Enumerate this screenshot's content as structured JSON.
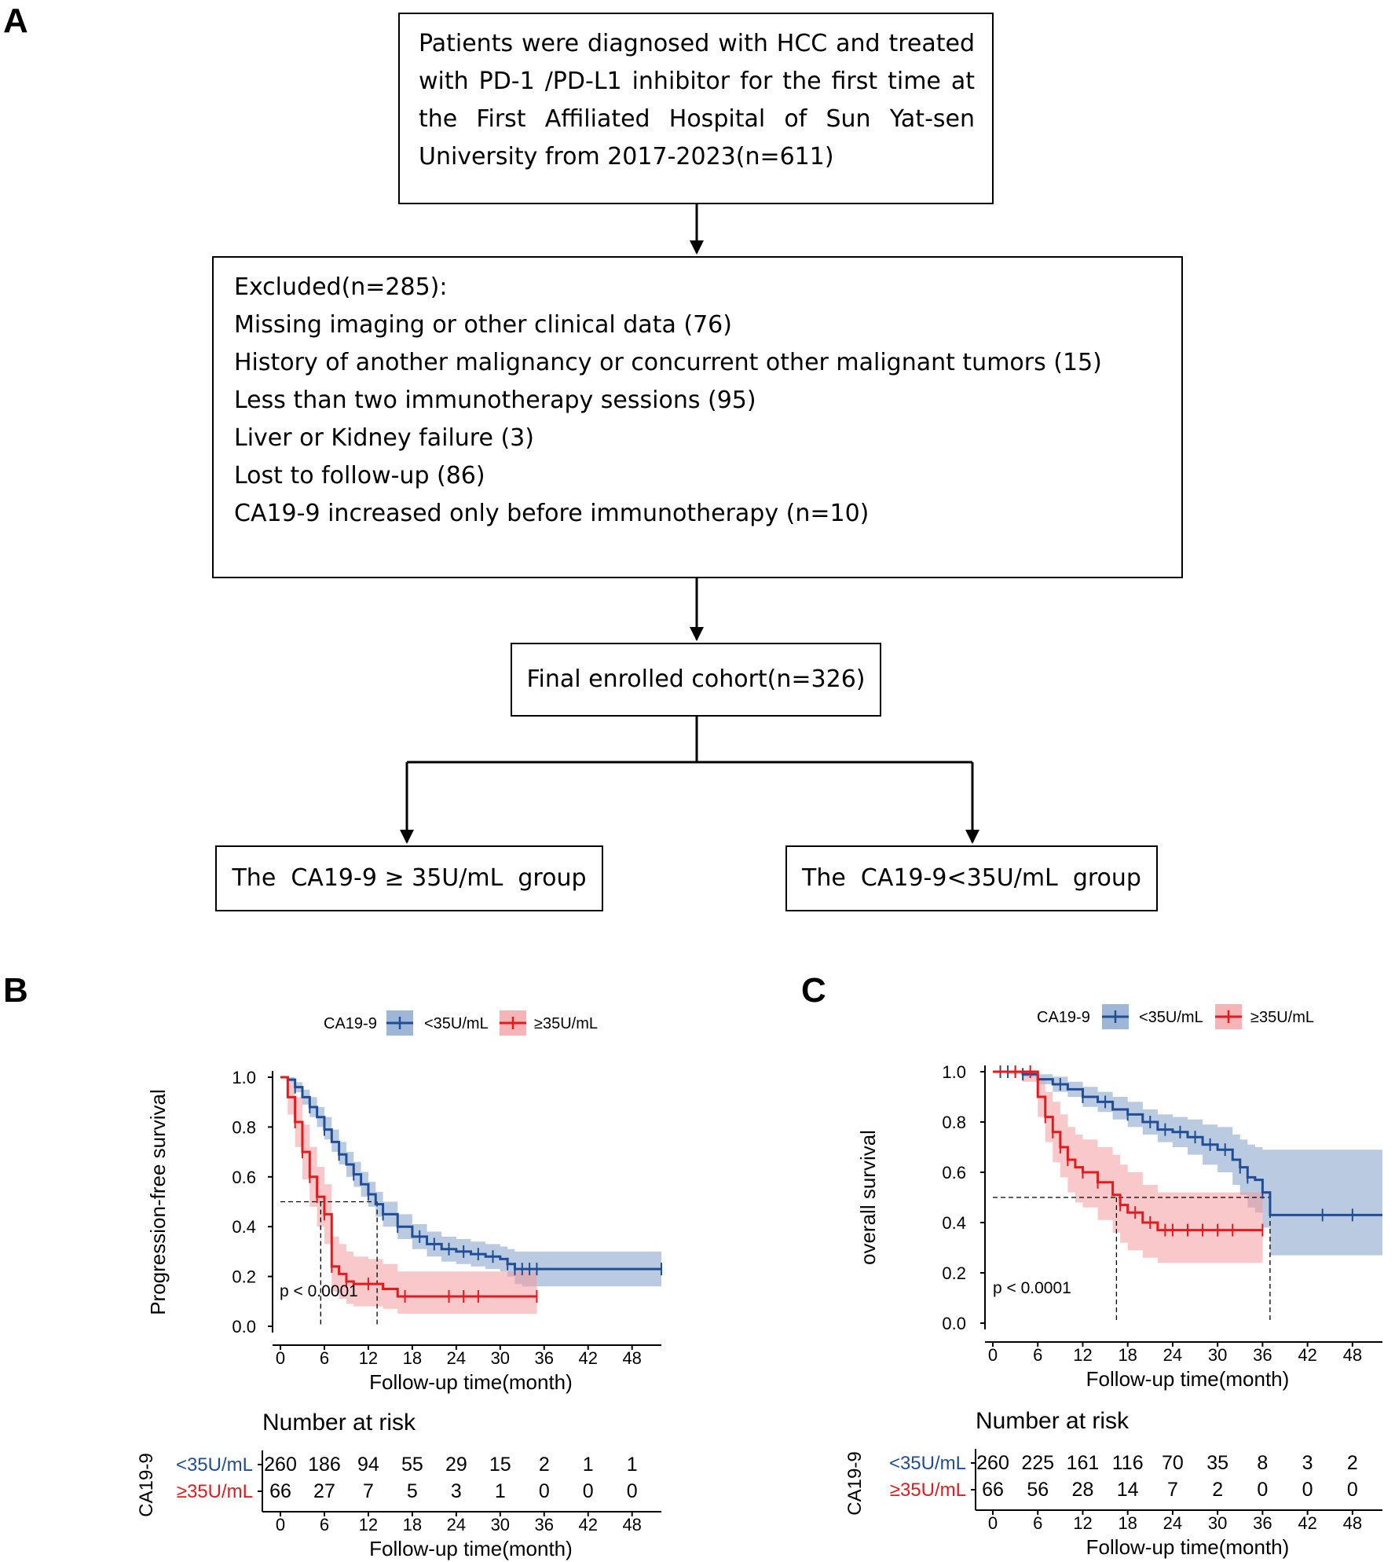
{
  "panels": {
    "a": "A",
    "b": "B",
    "c": "C"
  },
  "flowchart": {
    "top_box": "Patients were diagnosed with HCC and treated with PD-1 /PD-L1 inhibitor for the first time at the First Affiliated Hospital of Sun Yat-sen University from 2017-2023(n=611)",
    "excluded_title": "Excluded(n=285):",
    "excluded_items": [
      "Missing imaging or other clinical data (76)",
      "History of another malignancy or concurrent other malignant tumors (15)",
      "Less than two immunotherapy sessions (95)",
      "Liver or Kidney failure (3)",
      "Lost to follow-up (86)",
      "CA19-9 increased only before immunotherapy (n=10)"
    ],
    "final_box": "Final enrolled cohort(n=326)",
    "group_high": "The  CA19-9 ≥ 35U/mL  group",
    "group_low": "The  CA19-9<35U/mL  group"
  },
  "colors": {
    "low": "#1f4e96",
    "high": "#e41a1c",
    "low_band": "#7f9fc8",
    "high_band": "#f29b9e"
  },
  "chart_data": [
    {
      "type": "line",
      "panel": "B",
      "legend_title": "CA19-9",
      "legend": [
        "<35U/mL",
        "≥35U/mL"
      ],
      "ylabel": "Progression-free survival",
      "xlabel": "Follow-up time(month)",
      "xlim": [
        0,
        52
      ],
      "ylim": [
        0,
        1
      ],
      "x_ticks": [
        0,
        6,
        12,
        18,
        24,
        30,
        36,
        42,
        48
      ],
      "y_ticks": [
        "0.0",
        "0.2",
        "0.4",
        "0.6",
        "0.8",
        "1.0"
      ],
      "p_value": "p < 0.0001",
      "median_lines": [
        5.5,
        13.2
      ],
      "series": [
        {
          "name": "<35U/mL",
          "color_key": "low",
          "x": [
            0,
            1,
            2,
            3,
            4,
            5,
            6,
            7,
            8,
            9,
            10,
            11,
            12,
            13,
            14,
            16,
            18,
            20,
            22,
            24,
            26,
            28,
            30,
            31,
            32,
            33,
            34,
            35,
            52
          ],
          "y": [
            1.0,
            0.99,
            0.96,
            0.92,
            0.88,
            0.84,
            0.79,
            0.74,
            0.69,
            0.65,
            0.61,
            0.57,
            0.53,
            0.49,
            0.45,
            0.4,
            0.36,
            0.33,
            0.31,
            0.3,
            0.29,
            0.28,
            0.27,
            0.25,
            0.23,
            0.23,
            0.23,
            0.23,
            0.23
          ],
          "lower": [
            1.0,
            0.98,
            0.94,
            0.89,
            0.84,
            0.8,
            0.75,
            0.7,
            0.65,
            0.6,
            0.56,
            0.52,
            0.48,
            0.44,
            0.4,
            0.35,
            0.31,
            0.28,
            0.26,
            0.25,
            0.24,
            0.23,
            0.22,
            0.2,
            0.17,
            0.16,
            0.16,
            0.16,
            0.16
          ],
          "upper": [
            1.0,
            1.0,
            0.98,
            0.95,
            0.92,
            0.88,
            0.84,
            0.79,
            0.74,
            0.7,
            0.66,
            0.62,
            0.58,
            0.54,
            0.5,
            0.45,
            0.41,
            0.38,
            0.36,
            0.35,
            0.34,
            0.33,
            0.32,
            0.31,
            0.3,
            0.3,
            0.3,
            0.3,
            0.3
          ],
          "censor_x": [
            2,
            4,
            6,
            8,
            10,
            12,
            14,
            16,
            19,
            21,
            23,
            25,
            27,
            29,
            31,
            32,
            33,
            34,
            35,
            52
          ]
        },
        {
          "name": "≥35U/mL",
          "color_key": "high",
          "x": [
            0,
            1,
            2,
            3,
            4,
            5,
            6,
            7,
            8,
            9,
            10,
            12,
            14,
            16,
            18,
            20,
            35
          ],
          "y": [
            1.0,
            0.92,
            0.82,
            0.7,
            0.6,
            0.52,
            0.45,
            0.24,
            0.21,
            0.18,
            0.17,
            0.17,
            0.15,
            0.12,
            0.12,
            0.12,
            0.12
          ],
          "lower": [
            1.0,
            0.85,
            0.72,
            0.59,
            0.48,
            0.4,
            0.33,
            0.14,
            0.11,
            0.09,
            0.08,
            0.08,
            0.07,
            0.05,
            0.05,
            0.05,
            0.05
          ],
          "upper": [
            1.0,
            0.98,
            0.92,
            0.81,
            0.72,
            0.64,
            0.57,
            0.36,
            0.33,
            0.3,
            0.28,
            0.27,
            0.25,
            0.22,
            0.22,
            0.22,
            0.22
          ],
          "censor_x": [
            2,
            3,
            4,
            5,
            6,
            7,
            9,
            12,
            17,
            23,
            25,
            27,
            35
          ]
        }
      ],
      "risk_table": {
        "title": "Number at risk",
        "strata_label": "CA19-9",
        "rows": [
          {
            "label": "<35U/mL",
            "color_key": "low",
            "values": [
              "260",
              "186",
              "94",
              "55",
              "29",
              "15",
              "2",
              "1",
              "1"
            ]
          },
          {
            "label": "≥35U/mL",
            "color_key": "high",
            "values": [
              "66",
              "27",
              "7",
              "5",
              "3",
              "1",
              "0",
              "0",
              "0"
            ]
          }
        ],
        "xlabel": "Follow-up time(month)"
      }
    },
    {
      "type": "line",
      "panel": "C",
      "legend_title": "CA19-9",
      "legend": [
        "<35U/mL",
        "≥35U/mL"
      ],
      "ylabel": "overall survival",
      "xlabel": "Follow-up time(month)",
      "xlim": [
        0,
        52
      ],
      "ylim": [
        0,
        1
      ],
      "x_ticks": [
        0,
        6,
        12,
        18,
        24,
        30,
        36,
        42,
        48
      ],
      "y_ticks": [
        "0.0",
        "0.2",
        "0.4",
        "0.6",
        "0.8",
        "1.0"
      ],
      "p_value": "p < 0.0001",
      "median_lines": [
        16.5,
        37
      ],
      "series": [
        {
          "name": "<35U/mL",
          "color_key": "low",
          "x": [
            0,
            2,
            4,
            6,
            8,
            10,
            12,
            14,
            16,
            18,
            20,
            22,
            24,
            26,
            28,
            30,
            32,
            33,
            34,
            35,
            36,
            37,
            52
          ],
          "y": [
            1.0,
            1.0,
            0.99,
            0.97,
            0.95,
            0.93,
            0.9,
            0.88,
            0.85,
            0.83,
            0.8,
            0.77,
            0.76,
            0.74,
            0.71,
            0.69,
            0.65,
            0.62,
            0.58,
            0.57,
            0.52,
            0.43,
            0.43
          ],
          "lower": [
            1.0,
            0.99,
            0.98,
            0.95,
            0.92,
            0.9,
            0.86,
            0.84,
            0.81,
            0.78,
            0.75,
            0.72,
            0.7,
            0.67,
            0.63,
            0.6,
            0.55,
            0.51,
            0.46,
            0.44,
            0.38,
            0.27,
            0.27
          ],
          "upper": [
            1.0,
            1.0,
            1.0,
            0.99,
            0.98,
            0.96,
            0.94,
            0.92,
            0.9,
            0.88,
            0.85,
            0.83,
            0.82,
            0.81,
            0.79,
            0.78,
            0.75,
            0.73,
            0.71,
            0.7,
            0.69,
            0.69,
            0.69
          ],
          "censor_x": [
            1,
            2,
            3,
            4,
            6,
            9,
            12,
            15,
            18,
            21,
            23,
            25,
            27,
            29,
            31,
            33,
            34,
            36,
            44,
            48
          ]
        },
        {
          "name": "≥35U/mL",
          "color_key": "high",
          "x": [
            0,
            4,
            6,
            7,
            8,
            9,
            10,
            11,
            12,
            14,
            16,
            17,
            18,
            20,
            22,
            36
          ],
          "y": [
            1.0,
            1.0,
            0.9,
            0.82,
            0.76,
            0.7,
            0.65,
            0.62,
            0.6,
            0.56,
            0.51,
            0.47,
            0.44,
            0.4,
            0.37,
            0.37
          ],
          "lower": [
            1.0,
            0.96,
            0.82,
            0.72,
            0.64,
            0.58,
            0.52,
            0.48,
            0.46,
            0.41,
            0.36,
            0.32,
            0.29,
            0.26,
            0.24,
            0.24
          ],
          "upper": [
            1.0,
            1.0,
            0.97,
            0.92,
            0.88,
            0.83,
            0.78,
            0.75,
            0.73,
            0.7,
            0.67,
            0.63,
            0.6,
            0.55,
            0.52,
            0.52
          ],
          "censor_x": [
            3,
            5,
            7,
            8,
            9,
            10,
            12,
            14,
            17,
            19,
            21,
            23,
            24,
            26,
            28,
            30,
            32,
            36
          ]
        }
      ],
      "risk_table": {
        "title": "Number at risk",
        "strata_label": "CA19-9",
        "rows": [
          {
            "label": "<35U/mL",
            "color_key": "low",
            "values": [
              "260",
              "225",
              "161",
              "116",
              "70",
              "35",
              "8",
              "3",
              "2"
            ]
          },
          {
            "label": "≥35U/mL",
            "color_key": "high",
            "values": [
              "66",
              "56",
              "28",
              "14",
              "7",
              "2",
              "0",
              "0",
              "0"
            ]
          }
        ],
        "xlabel": "Follow-up time(month)"
      }
    }
  ]
}
